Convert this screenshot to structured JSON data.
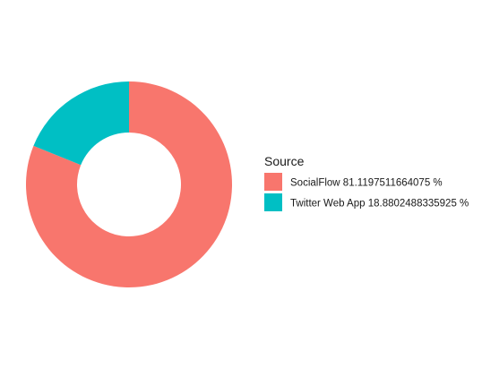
{
  "chart_data": {
    "type": "pie",
    "donut": true,
    "legend_title": "Source",
    "legend_position": "right",
    "slices": [
      {
        "label": "SocialFlow 81.1197511664075 %",
        "value": 81.1197511664075,
        "color": "#F8766D"
      },
      {
        "label": "Twitter Web App 18.8802488335925 %",
        "value": 18.8802488335925,
        "color": "#00BFC4"
      }
    ]
  }
}
